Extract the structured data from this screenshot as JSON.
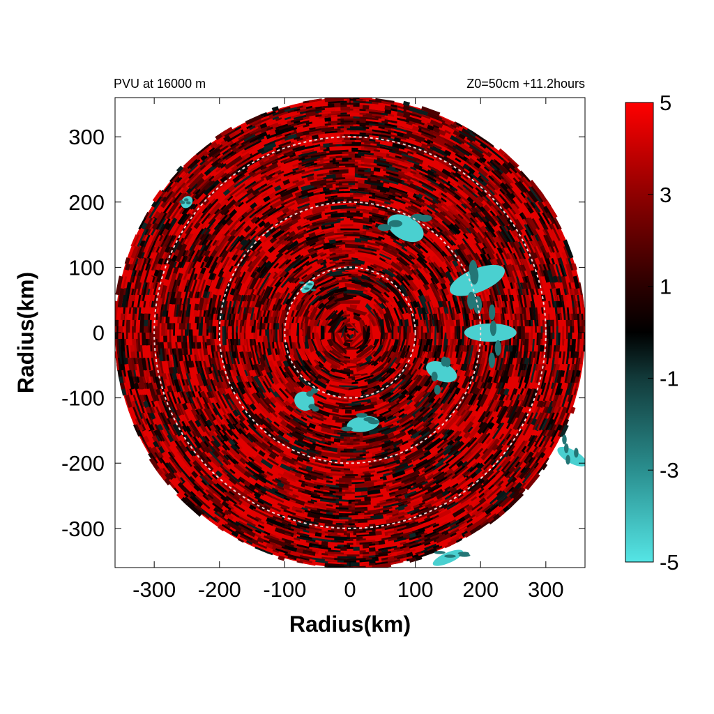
{
  "chart_data": {
    "type": "heatmap",
    "title_left": "PVU at 16000 m",
    "title_right": "Z0=50cm  +11.2hours",
    "xlabel": "Radius(km)",
    "ylabel": "Radius(km)",
    "xlim": [
      -360,
      360
    ],
    "ylim": [
      -360,
      360
    ],
    "xticks": [
      -300,
      -200,
      -100,
      0,
      100,
      200,
      300
    ],
    "yticks": [
      -300,
      -200,
      -100,
      0,
      100,
      200,
      300
    ],
    "xtick_labels": [
      "-300",
      "-200",
      "-100",
      "0",
      "100",
      "200",
      "300"
    ],
    "ytick_labels": [
      "300",
      "200",
      "100",
      "0",
      "-100",
      "-200",
      "-300"
    ],
    "data_radius_km": 360,
    "reference_circles_km": [
      100,
      200,
      300
    ],
    "colorbar": {
      "range": [
        -5,
        5
      ],
      "ticks": [
        5,
        3,
        1,
        -1,
        -3,
        -5
      ],
      "tick_labels": [
        "5",
        "3",
        "1",
        "-1",
        "-3",
        "-5"
      ],
      "colors": [
        {
          "value": -5,
          "color": "#55e5e5"
        },
        {
          "value": -3,
          "color": "#2a8f8f"
        },
        {
          "value": -1,
          "color": "#123a3a"
        },
        {
          "value": 0,
          "color": "#000000"
        },
        {
          "value": 1,
          "color": "#2a0000"
        },
        {
          "value": 3,
          "color": "#8f0000"
        },
        {
          "value": 5,
          "color": "#ff0000"
        }
      ]
    },
    "field_description_values": {
      "background_level": 4.5,
      "negative_patch_level": -4.5
    },
    "negative_patches": [
      {
        "x": 85,
        "y": 160,
        "rx": 30,
        "ry": 18
      },
      {
        "x": 195,
        "y": 80,
        "rx": 18,
        "ry": 45
      },
      {
        "x": 215,
        "y": 0,
        "rx": 14,
        "ry": 40
      },
      {
        "x": 140,
        "y": -60,
        "rx": 14,
        "ry": 25
      },
      {
        "x": -70,
        "y": -105,
        "rx": 16,
        "ry": 14
      },
      {
        "x": 20,
        "y": -140,
        "rx": 25,
        "ry": 12
      },
      {
        "x": -65,
        "y": 70,
        "rx": 12,
        "ry": 6
      },
      {
        "x": 340,
        "y": -190,
        "rx": 10,
        "ry": 25
      },
      {
        "x": 150,
        "y": -345,
        "rx": 25,
        "ry": 8
      },
      {
        "x": -250,
        "y": 200,
        "rx": 10,
        "ry": 8
      }
    ]
  }
}
